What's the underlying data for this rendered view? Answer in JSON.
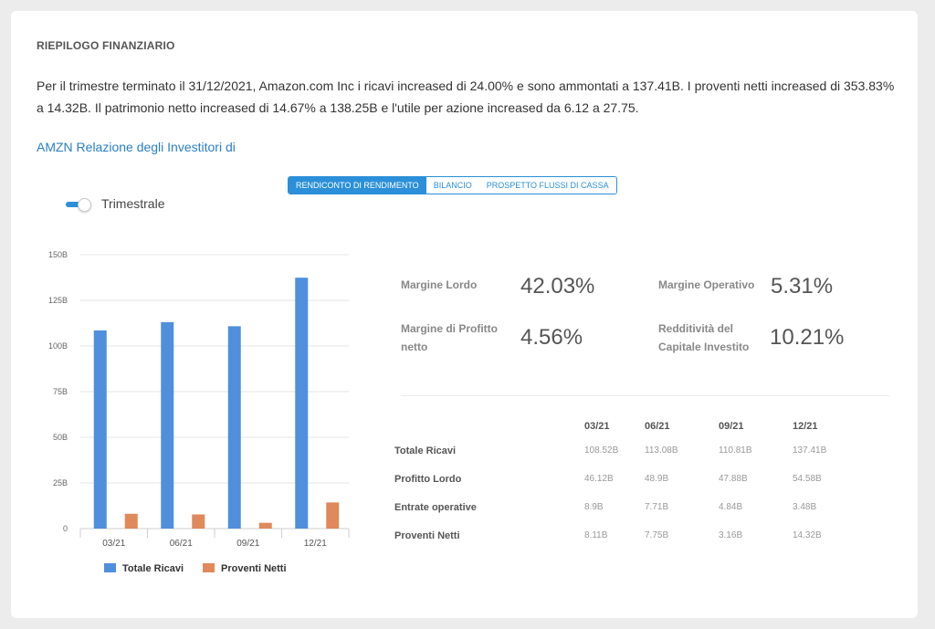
{
  "section_title": "RIEPILOGO FINANZIARIO",
  "summary_text": "Per il trimestre terminato il 31/12/2021, Amazon.com Inc i ricavi increased di 24.00% e sono ammontati a 137.41B. I proventi netti increased di 353.83% a 14.32B. Il patrimonio netto increased di 14.67% a 138.25B e l'utile per azione increased da 6.12 a 27.75.",
  "ir_link": "AMZN Relazione degli Investitori di",
  "tabs": [
    "RENDICONTO DI RENDIMENTO",
    "BILANCIO",
    "PROSPETTO FLUSSI DI CASSA"
  ],
  "toggle_label": "Trimestrale",
  "metrics": {
    "gross_margin": {
      "label": "Margine Lordo",
      "value": "42.03%"
    },
    "operating_margin": {
      "label": "Margine Operativo",
      "value": "5.31%"
    },
    "net_margin": {
      "label": "Margine di Profitto netto",
      "value": "4.56%"
    },
    "roic": {
      "label": "Redditività del Capitale Investito",
      "value": "10.21%"
    }
  },
  "table": {
    "headers": [
      "",
      "03/21",
      "06/21",
      "09/21",
      "12/21"
    ],
    "rows": [
      [
        "Totale Ricavi",
        "108.52B",
        "113.08B",
        "110.81B",
        "137.41B"
      ],
      [
        "Profitto Lordo",
        "46.12B",
        "48.9B",
        "47.88B",
        "54.58B"
      ],
      [
        "Entrate operative",
        "8.9B",
        "7.71B",
        "4.84B",
        "3.48B"
      ],
      [
        "Proventi Netti",
        "8.11B",
        "7.75B",
        "3.16B",
        "14.32B"
      ]
    ]
  },
  "colors": {
    "accent": "#2b8fd9",
    "revenue": "#4f8fdc",
    "net_income": "#e0895a"
  },
  "chart_data": {
    "type": "bar",
    "categories": [
      "03/21",
      "06/21",
      "09/21",
      "12/21"
    ],
    "series": [
      {
        "name": "Totale Ricavi",
        "values": [
          108.52,
          113.08,
          110.81,
          137.41
        ]
      },
      {
        "name": "Proventi Netti",
        "values": [
          8.11,
          7.75,
          3.16,
          14.32
        ]
      }
    ],
    "y_ticks": [
      "0",
      "25B",
      "50B",
      "75B",
      "100B",
      "125B",
      "150B"
    ],
    "ylim": [
      0,
      150
    ],
    "grid": true,
    "legend_position": "bottom"
  }
}
